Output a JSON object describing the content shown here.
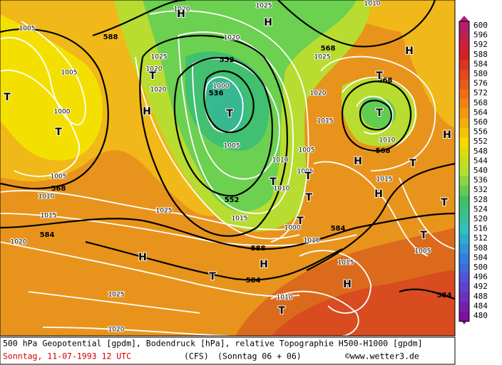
{
  "colorbar": {
    "levels": [
      600,
      596,
      592,
      588,
      584,
      580,
      576,
      572,
      568,
      564,
      560,
      556,
      552,
      548,
      544,
      540,
      536,
      532,
      528,
      524,
      520,
      516,
      512,
      508,
      504,
      500,
      496,
      492,
      488,
      484,
      480
    ]
  },
  "caption": {
    "line1": "500 hPa Geopotential [gpdm], Bodendruck [hPa], relative Topographie H500-H1000 [gpdm]",
    "date": "Sonntag, 11-07-1993  12 UTC",
    "model": "(CFS)",
    "run": "(Sonntag 06 + 06)",
    "credit": "©www.wetter3.de"
  },
  "map": {
    "labels": [
      "588",
      "568",
      "552",
      "536",
      "568",
      "568",
      "568",
      "552",
      "584",
      "584",
      "588",
      "584",
      "584",
      "1005",
      "1005",
      "1000",
      "1005",
      "1010",
      "1015",
      "1020",
      "1025",
      "1025",
      "1020",
      "1020",
      "1025",
      "1020",
      "1020",
      "1000",
      "1005",
      "1010",
      "1010",
      "1015",
      "1000",
      "1010",
      "1015",
      "1020",
      "1025",
      "1005",
      "1005",
      "1010",
      "1015",
      "1015",
      "1010",
      "1005",
      "1025",
      "1010",
      "1020",
      "H",
      "H",
      "H",
      "H",
      "H",
      "H",
      "H",
      "H",
      "H",
      "H",
      "T",
      "T",
      "T",
      "T",
      "T",
      "T",
      "T",
      "T",
      "T",
      "T",
      "T",
      "T",
      "T",
      "T",
      "T"
    ]
  }
}
